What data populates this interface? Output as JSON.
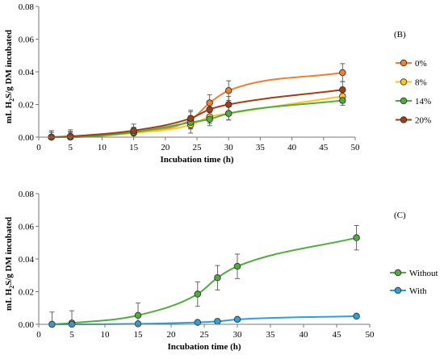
{
  "chart_data": [
    {
      "type": "line",
      "panel_label": "(B)",
      "xlabel": "Incubation time (h)",
      "ylabel": "mL H2S/g DM incubated",
      "ylabel_parts": {
        "pre": "mL H",
        "sub": "2",
        "post": "S/g DM incubated"
      },
      "xlim": [
        0,
        50
      ],
      "ylim": [
        0,
        0.08
      ],
      "x_ticks": [
        "0",
        "5",
        "10",
        "15",
        "20",
        "25",
        "30",
        "35",
        "40",
        "45",
        "50"
      ],
      "y_ticks": [
        "0.00",
        "0.02",
        "0.04",
        "0.06",
        "0.08"
      ],
      "grid": false,
      "legend_position": "right",
      "x": [
        2,
        5,
        15,
        24,
        27,
        30,
        48
      ],
      "series": [
        {
          "name": "0%",
          "color": "#F07F2E",
          "values": [
            0.0,
            0.0005,
            0.003,
            0.0105,
            0.021,
            0.0285,
            0.0395
          ],
          "errors": [
            0.003,
            0.003,
            0.003,
            0.005,
            0.005,
            0.006,
            0.0055
          ]
        },
        {
          "name": "8%",
          "color": "#FFC61A",
          "values": [
            0.0,
            0.0,
            0.0025,
            0.0075,
            0.0125,
            0.0145,
            0.025
          ],
          "errors": [
            0.003,
            0.003,
            0.003,
            0.005,
            0.004,
            0.004,
            0.004
          ]
        },
        {
          "name": "14%",
          "color": "#4FAE3B",
          "values": [
            0.0,
            0.0,
            0.003,
            0.009,
            0.011,
            0.0145,
            0.0225
          ],
          "errors": [
            0.003,
            0.003,
            0.003,
            0.004,
            0.004,
            0.004,
            0.003
          ]
        },
        {
          "name": "20%",
          "color": "#A23E14",
          "values": [
            0.0,
            0.0005,
            0.004,
            0.0115,
            0.017,
            0.02,
            0.029
          ],
          "errors": [
            0.004,
            0.004,
            0.004,
            0.005,
            0.005,
            0.005,
            0.005
          ]
        }
      ]
    },
    {
      "type": "line",
      "panel_label": "(C)",
      "xlabel": "Incubation time (h)",
      "ylabel": "mL H2S/g DM incubated",
      "ylabel_parts": {
        "pre": "mL H",
        "sub": "2",
        "post": "S/g DM incubated"
      },
      "xlim": [
        0,
        50
      ],
      "ylim": [
        0,
        0.08
      ],
      "x_ticks": [
        "0",
        "5",
        "10",
        "15",
        "20",
        "25",
        "30",
        "35",
        "40",
        "45",
        "50"
      ],
      "y_ticks": [
        "0.00",
        "0.02",
        "0.04",
        "0.06",
        "0.08"
      ],
      "grid": false,
      "legend_position": "right",
      "x": [
        2,
        5,
        15,
        24,
        27,
        30,
        48
      ],
      "series": [
        {
          "name": "Without",
          "color": "#4FAE3B",
          "values": [
            0.0,
            0.0008,
            0.0055,
            0.0185,
            0.0285,
            0.0355,
            0.053
          ],
          "errors": [
            0.0075,
            0.0075,
            0.0075,
            0.0075,
            0.0075,
            0.0075,
            0.0075
          ]
        },
        {
          "name": "With",
          "color": "#2E9FD8",
          "values": [
            0.0,
            0.0,
            0.0003,
            0.0012,
            0.0018,
            0.003,
            0.005
          ],
          "errors": [
            0,
            0,
            0,
            0,
            0,
            0,
            0
          ]
        }
      ]
    }
  ]
}
